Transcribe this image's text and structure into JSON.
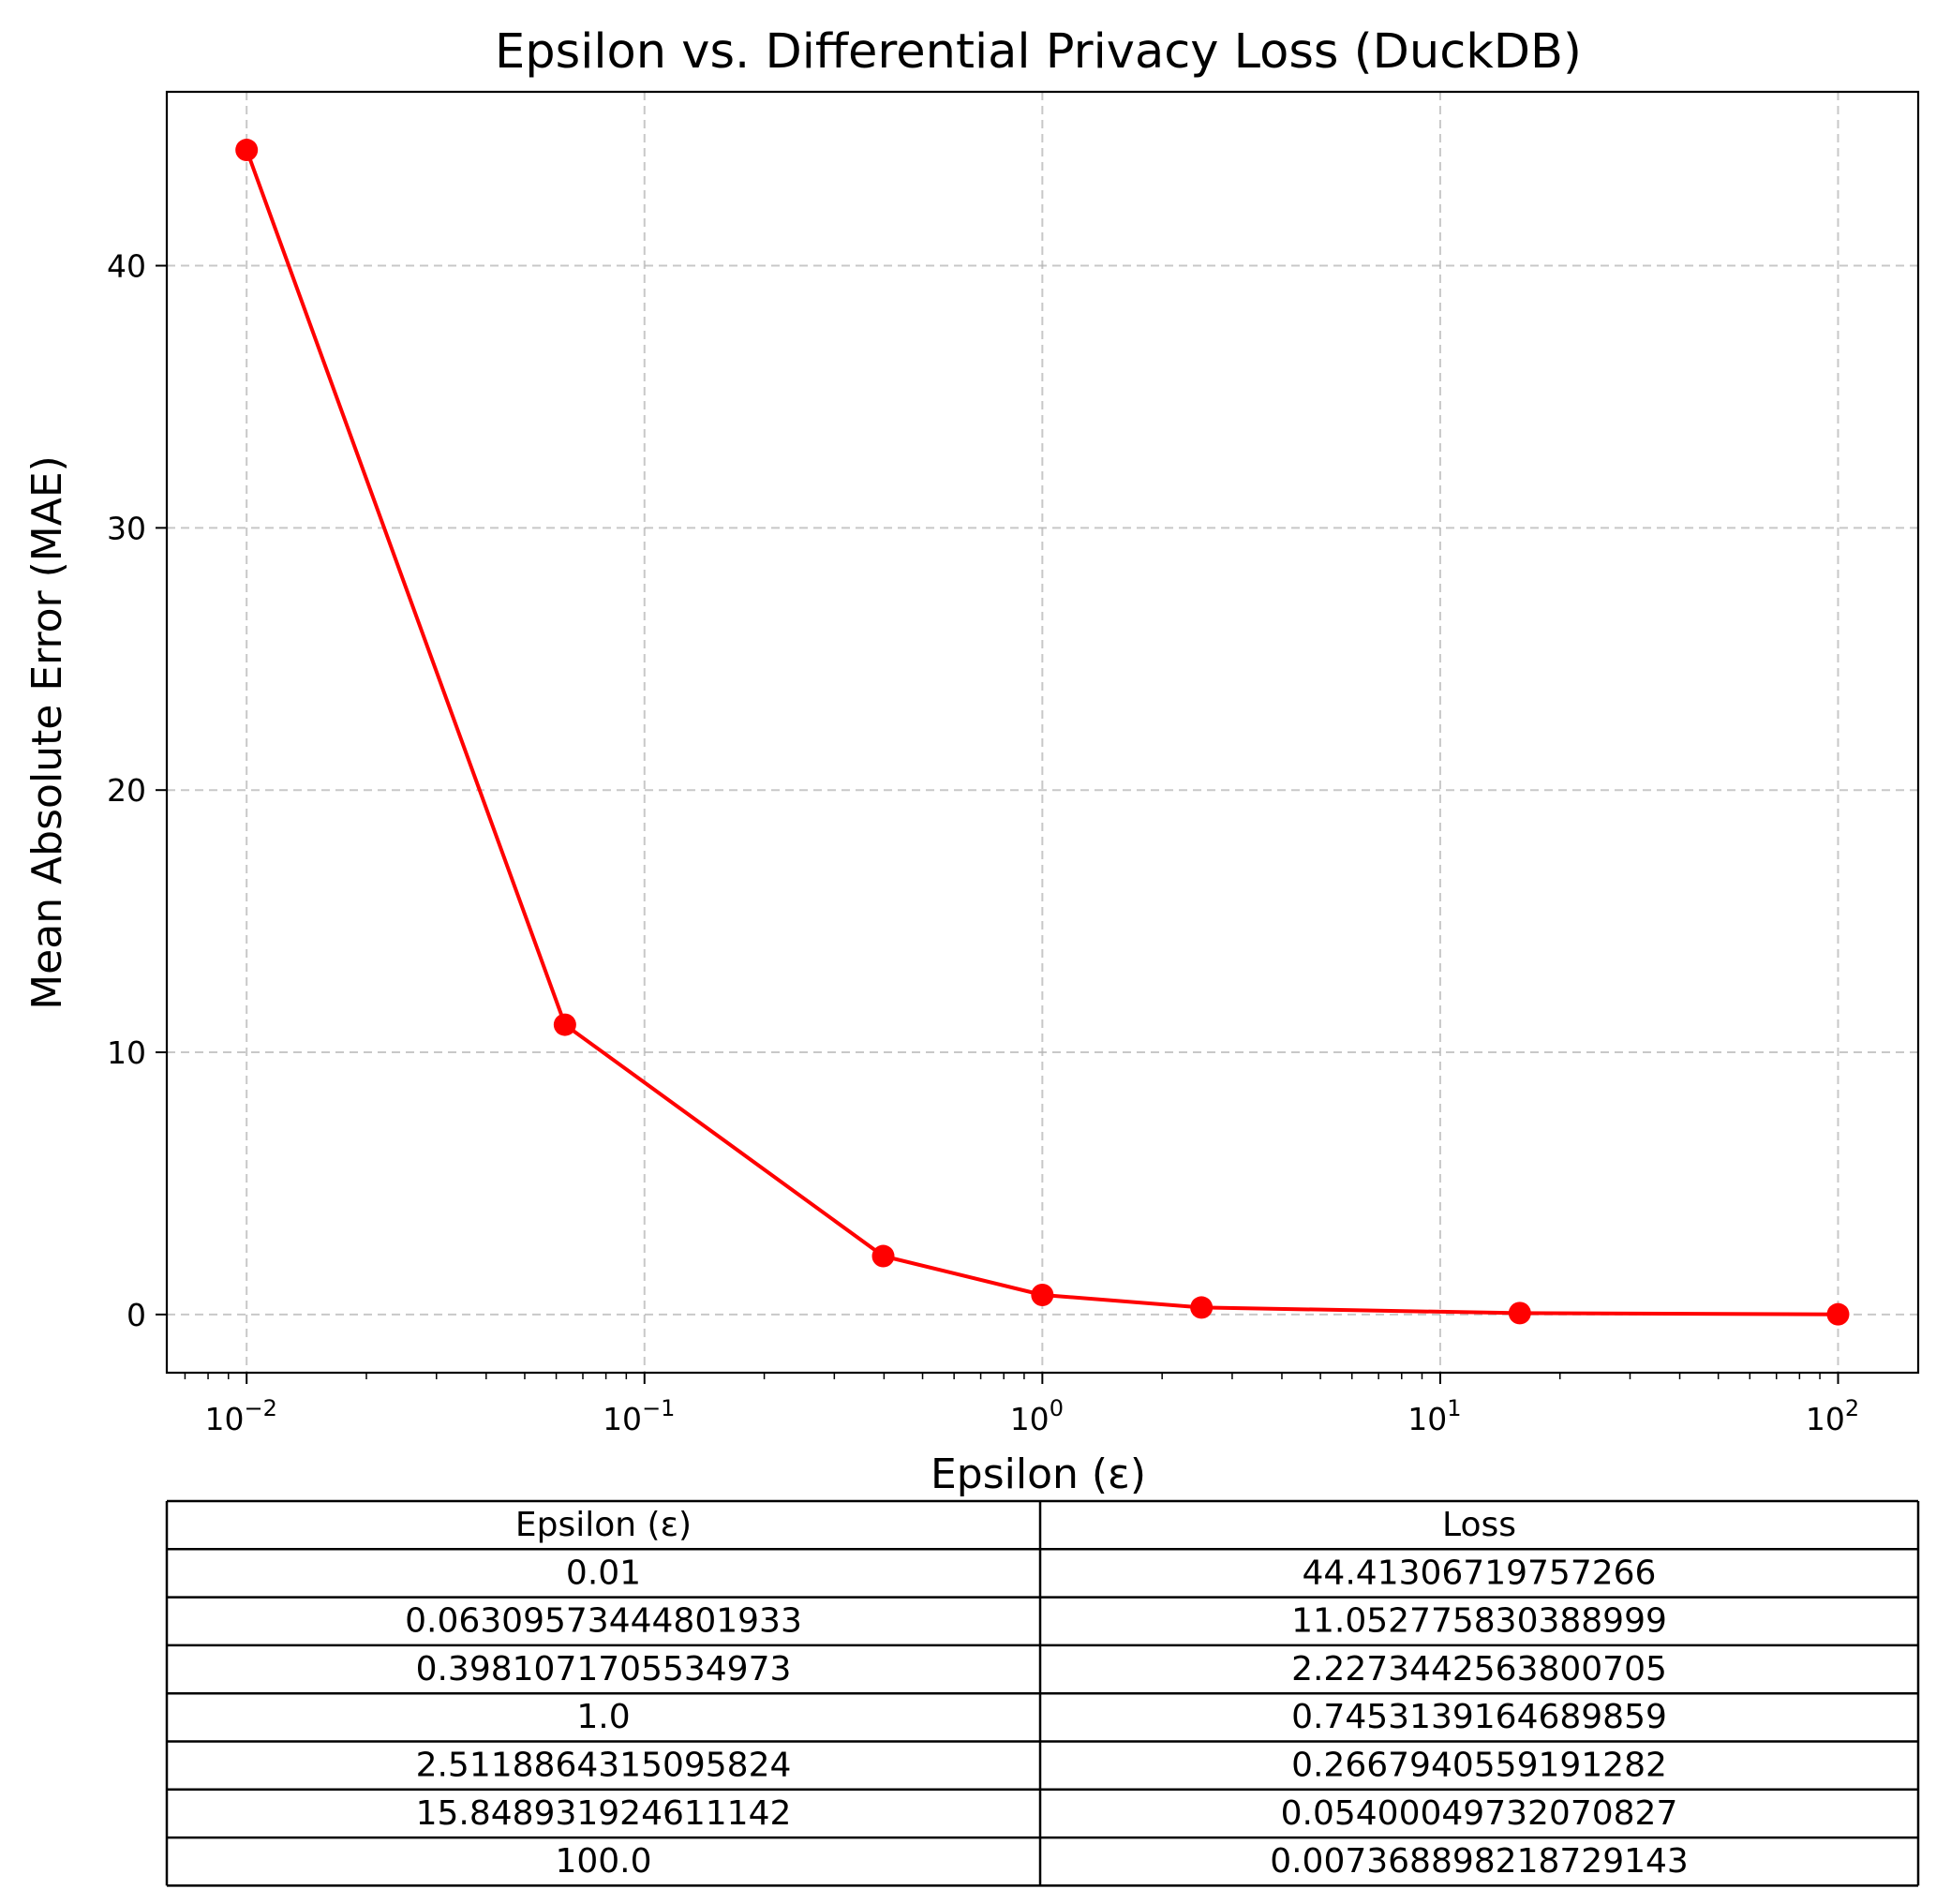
{
  "chart_data": {
    "type": "line",
    "title": "Epsilon vs. Differential Privacy Loss (DuckDB)",
    "xlabel": "Epsilon (ε)",
    "ylabel": "Mean Absolute Error (MAE)",
    "x_scale": "log",
    "xlim": [
      0.0063,
      159
    ],
    "ylim": [
      -2.22,
      46.63
    ],
    "x_ticks": [
      {
        "value": 0.01,
        "base": "10",
        "exp": "−2"
      },
      {
        "value": 0.1,
        "base": "10",
        "exp": "−1"
      },
      {
        "value": 1,
        "base": "10",
        "exp": "0"
      },
      {
        "value": 10,
        "base": "10",
        "exp": "1"
      },
      {
        "value": 100,
        "base": "10",
        "exp": "2"
      }
    ],
    "y_ticks": [
      0,
      10,
      20,
      30,
      40
    ],
    "grid": true,
    "series": [
      {
        "color": "#ff0000",
        "marker": "circle",
        "x": [
          0.01,
          0.06309573444801933,
          0.3981071705534973,
          1.0,
          2.5118864315095824,
          15.848931924611142,
          100.0
        ],
        "y": [
          44.41306719757266,
          11.052775830388999,
          2.2273442563800705,
          0.7453139164689859,
          0.2667940559191282,
          0.05400049732070827,
          0.007368898218729143
        ]
      }
    ],
    "table": {
      "headers": [
        "Epsilon (ε)",
        "Loss"
      ],
      "rows": [
        [
          "0.01",
          "44.41306719757266"
        ],
        [
          "0.06309573444801933",
          "11.052775830388999"
        ],
        [
          "0.3981071705534973",
          "2.2273442563800705"
        ],
        [
          "1.0",
          "0.7453139164689859"
        ],
        [
          "2.5118864315095824",
          "0.2667940559191282"
        ],
        [
          "15.848931924611142",
          "0.05400049732070827"
        ],
        [
          "100.0",
          "0.007368898218729143"
        ]
      ]
    }
  }
}
